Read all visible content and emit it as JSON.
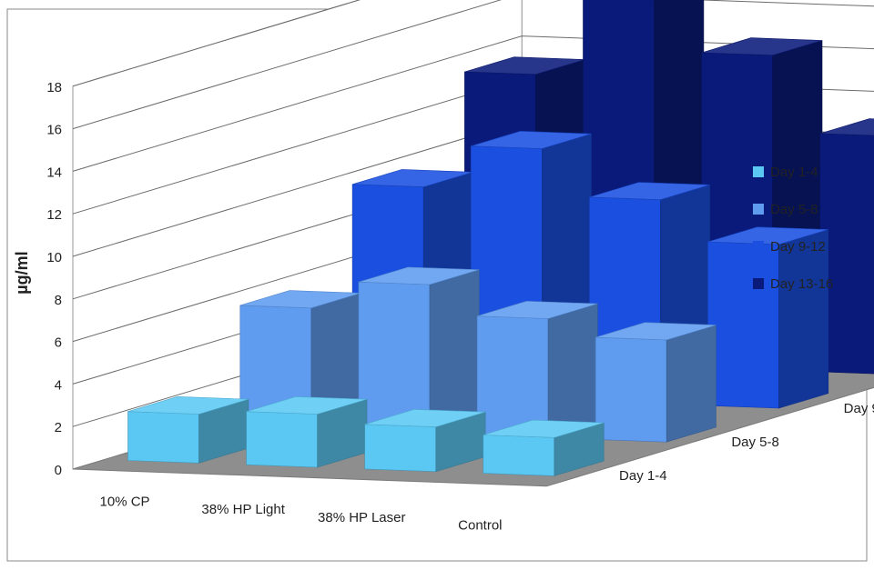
{
  "chart_data": {
    "type": "bar",
    "subtype": "3d-column",
    "ylabel": "µg/ml",
    "ylim": [
      0,
      18
    ],
    "yticks": [
      "0",
      "2",
      "4",
      "6",
      "8",
      "10",
      "12",
      "14",
      "16",
      "18"
    ],
    "grid": true,
    "legend_position": "right",
    "categories": [
      "10% CP",
      "38% HP Light",
      "38% HP Laser",
      "Control"
    ],
    "series": [
      {
        "name": "Day 1-4",
        "color": "#5bc8f3",
        "values": [
          2.3,
          2.5,
          2.1,
          1.8
        ]
      },
      {
        "name": "Day 5-8",
        "color": "#5f9cf0",
        "values": [
          5.7,
          7.0,
          5.6,
          4.8
        ]
      },
      {
        "name": "Day 9-12",
        "color": "#1a4fe0",
        "values": [
          9.8,
          11.8,
          9.6,
          7.7
        ]
      },
      {
        "name": "Day 13-16",
        "color": "#0a1a7a",
        "values": [
          13.5,
          17.2,
          14.8,
          11.2
        ]
      }
    ]
  }
}
